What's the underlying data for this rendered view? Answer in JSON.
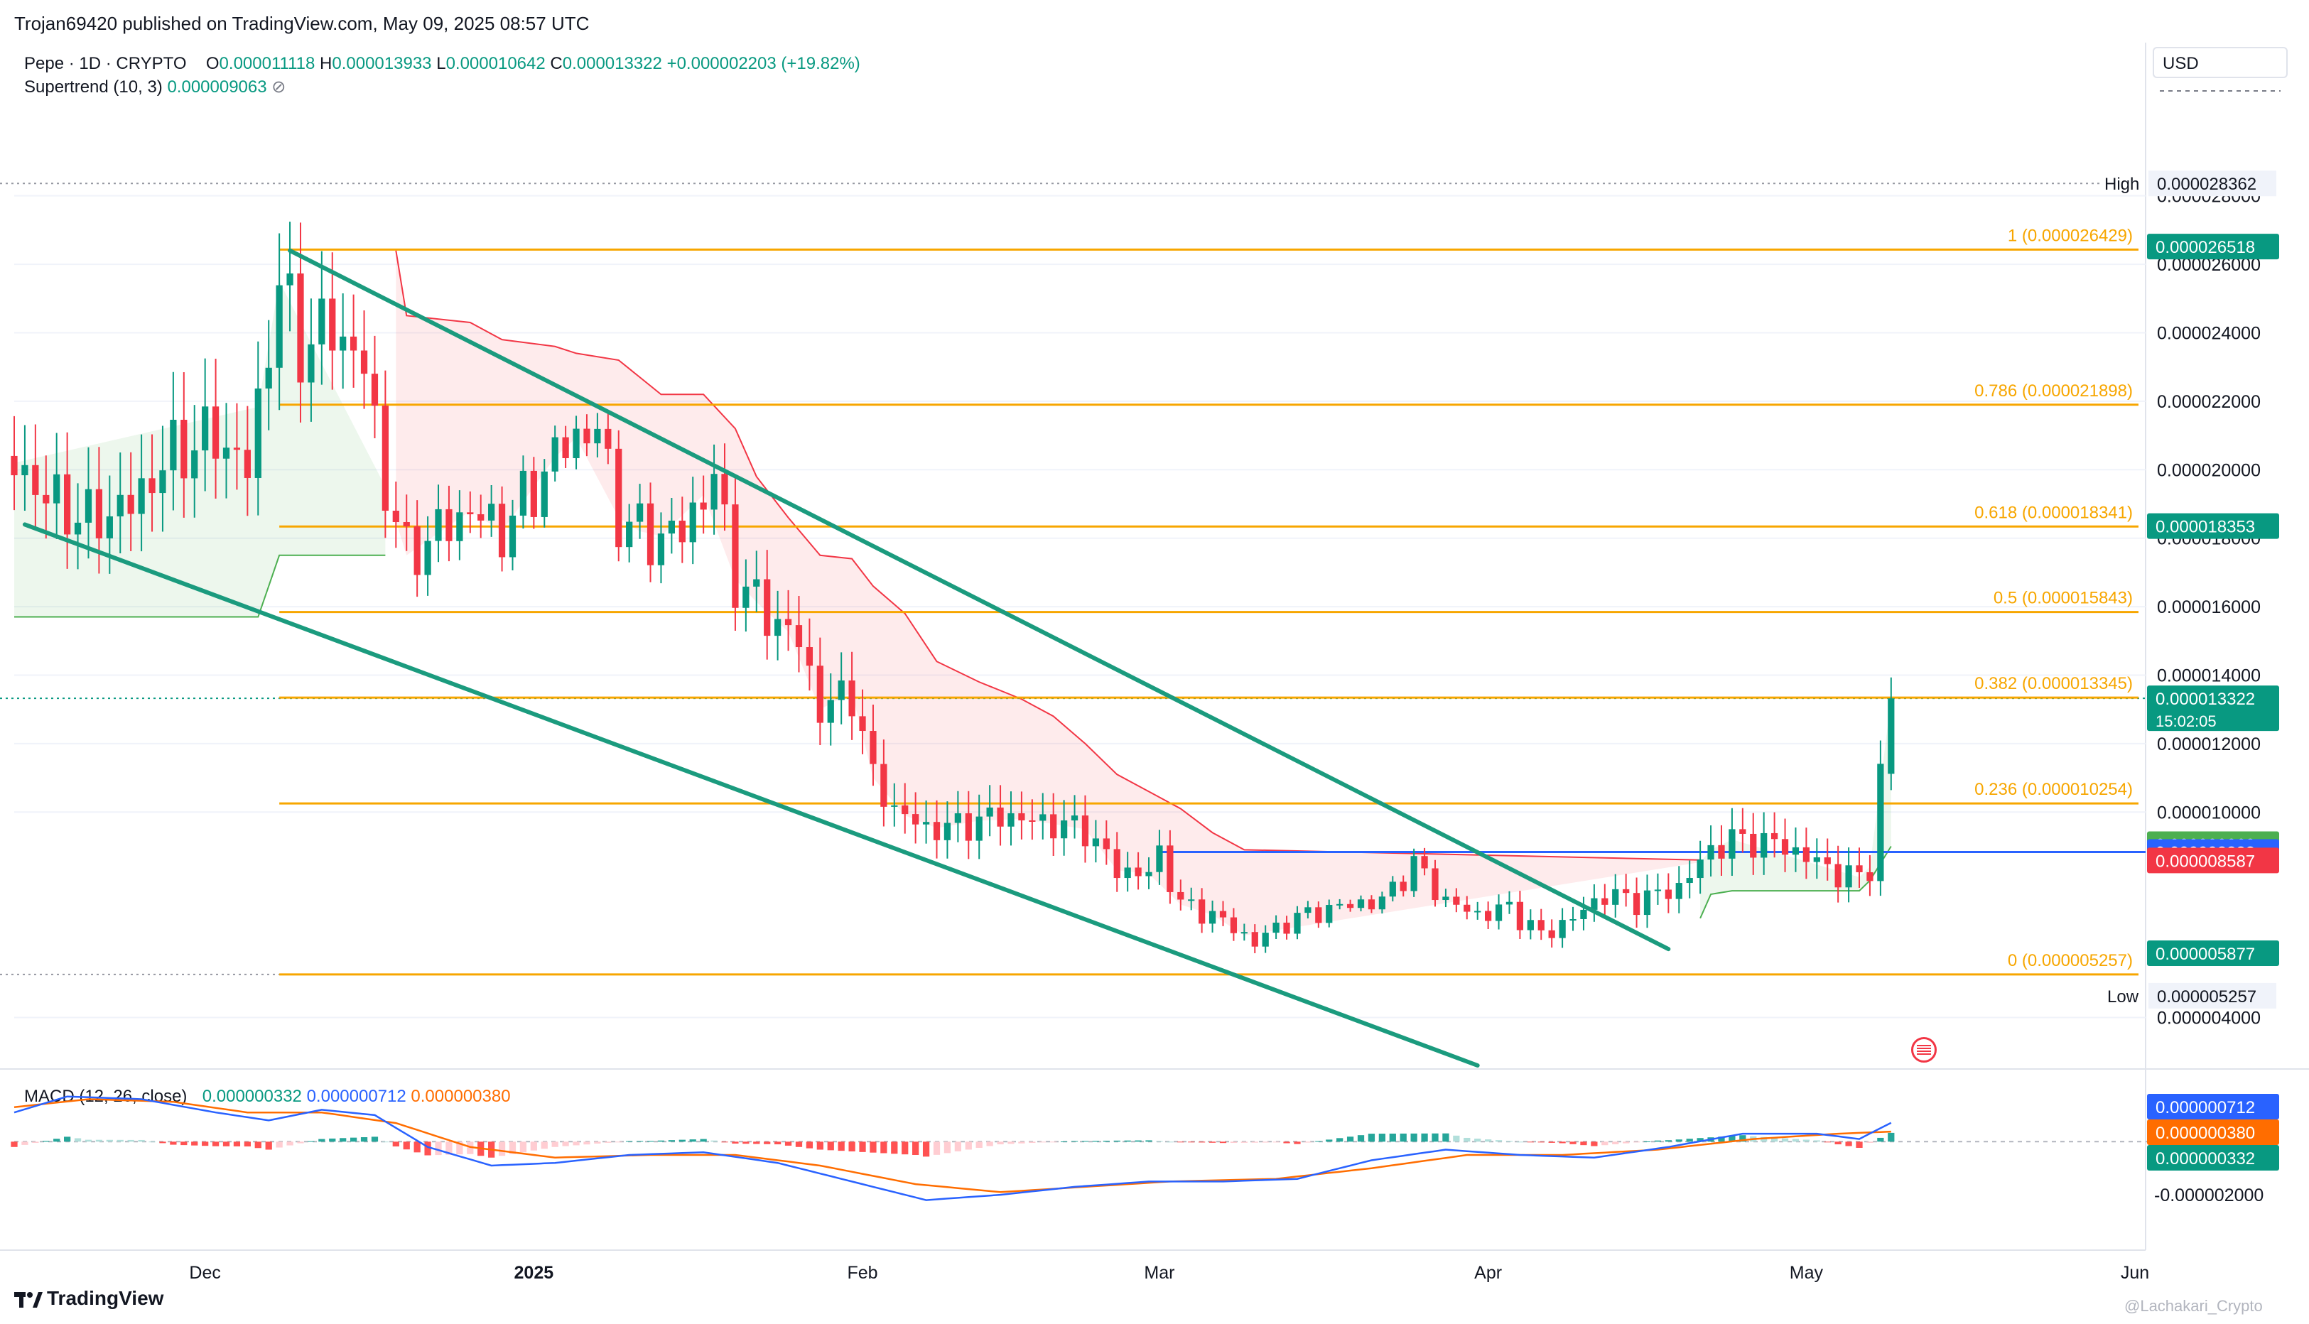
{
  "publisher": "Trojan69420 published on TradingView.com, May 09, 2025 08:57 UTC",
  "legend": {
    "symbol": "Pepe · 1D · CRYPTO",
    "o_label": "O",
    "o": "0.000011118",
    "h_label": "H",
    "h": "0.000013933",
    "l_label": "L",
    "l": "0.000010642",
    "c_label": "C",
    "c": "0.000013322",
    "change": "+0.000002203 (+19.82%)",
    "supertrend_label": "Supertrend (10, 3)",
    "supertrend_value": "0.000009063",
    "supertrend_icon": "hide-eye-icon"
  },
  "macd_legend": {
    "label": "MACD (12, 26, close)",
    "hist": "0.000000332",
    "macd": "0.000000712",
    "signal": "0.000000380"
  },
  "currency_button": "USD",
  "branding": "TradingView",
  "watermark": "@Lachakari_Crypto",
  "colors": {
    "up": "#089981",
    "down": "#f23645",
    "fib": "#f7a600",
    "blue": "#2962ff",
    "macd": "#2962ff",
    "signal": "#ff6d00",
    "trend": "#1b9b7e",
    "st_up": "#4caf50",
    "st_down": "#f23645"
  },
  "chart_data": {
    "type": "candlestick",
    "timeframe": "1D",
    "ylim": [
      2.6e-06,
      3.04e-05
    ],
    "y_ticks": [
      "0.000028000",
      "0.000026000",
      "0.000024000",
      "0.000022000",
      "0.000020000",
      "0.000018000",
      "0.000016000",
      "0.000014000",
      "0.000012000",
      "0.000010000",
      "0.000004000"
    ],
    "x_ticks": [
      "Dec",
      "2025",
      "Feb",
      "Mar",
      "Apr",
      "May",
      "Jun"
    ],
    "x_tick_dates": [
      "2024-12-01",
      "2025-01-01",
      "2025-02-01",
      "2025-03-01",
      "2025-04-01",
      "2025-05-01",
      "2025-06-01"
    ],
    "x_range": [
      "2024-11-13",
      "2025-06-02"
    ],
    "candle_close_anchors": [
      {
        "date": "2024-11-13",
        "close": 2.02e-05
      },
      {
        "date": "2024-11-16",
        "close": 1.92e-05
      },
      {
        "date": "2024-11-20",
        "close": 1.85e-05
      },
      {
        "date": "2024-11-24",
        "close": 1.9e-05
      },
      {
        "date": "2024-11-28",
        "close": 2.05e-05
      },
      {
        "date": "2024-12-02",
        "close": 2.1e-05
      },
      {
        "date": "2024-12-05",
        "close": 2e-05
      },
      {
        "date": "2024-12-08",
        "close": 2.55e-05
      },
      {
        "date": "2024-12-10",
        "close": 2.36e-05
      },
      {
        "date": "2024-12-13",
        "close": 2.42e-05
      },
      {
        "date": "2024-12-16",
        "close": 2.3e-05
      },
      {
        "date": "2024-12-18",
        "close": 1.95e-05
      },
      {
        "date": "2024-12-20",
        "close": 1.75e-05
      },
      {
        "date": "2024-12-23",
        "close": 1.82e-05
      },
      {
        "date": "2024-12-26",
        "close": 1.88e-05
      },
      {
        "date": "2024-12-29",
        "close": 1.82e-05
      },
      {
        "date": "2025-01-01",
        "close": 1.95e-05
      },
      {
        "date": "2025-01-04",
        "close": 2.08e-05
      },
      {
        "date": "2025-01-07",
        "close": 2.12e-05
      },
      {
        "date": "2025-01-09",
        "close": 1.86e-05
      },
      {
        "date": "2025-01-12",
        "close": 1.8e-05
      },
      {
        "date": "2025-01-15",
        "close": 1.82e-05
      },
      {
        "date": "2025-01-18",
        "close": 1.98e-05
      },
      {
        "date": "2025-01-20",
        "close": 1.68e-05
      },
      {
        "date": "2025-01-23",
        "close": 1.58e-05
      },
      {
        "date": "2025-01-26",
        "close": 1.5e-05
      },
      {
        "date": "2025-01-28",
        "close": 1.3e-05
      },
      {
        "date": "2025-01-31",
        "close": 1.35e-05
      },
      {
        "date": "2025-02-02",
        "close": 1.1e-05
      },
      {
        "date": "2025-02-04",
        "close": 1.01e-05
      },
      {
        "date": "2025-02-07",
        "close": 9.5e-06
      },
      {
        "date": "2025-02-10",
        "close": 9.6e-06
      },
      {
        "date": "2025-02-14",
        "close": 9.9e-06
      },
      {
        "date": "2025-02-18",
        "close": 9.7e-06
      },
      {
        "date": "2025-02-22",
        "close": 9.5e-06
      },
      {
        "date": "2025-02-25",
        "close": 8.3e-06
      },
      {
        "date": "2025-02-28",
        "close": 8.2e-06
      },
      {
        "date": "2025-03-01",
        "close": 8.8e-06
      },
      {
        "date": "2025-03-03",
        "close": 7.3e-06
      },
      {
        "date": "2025-03-06",
        "close": 7e-06
      },
      {
        "date": "2025-03-08",
        "close": 6.6e-06
      },
      {
        "date": "2025-03-10",
        "close": 6.2e-06
      },
      {
        "date": "2025-03-13",
        "close": 6.8e-06
      },
      {
        "date": "2025-03-16",
        "close": 7.1e-06
      },
      {
        "date": "2025-03-19",
        "close": 7.3e-06
      },
      {
        "date": "2025-03-22",
        "close": 7.4e-06
      },
      {
        "date": "2025-03-25",
        "close": 8.5e-06
      },
      {
        "date": "2025-03-28",
        "close": 7.4e-06
      },
      {
        "date": "2025-03-31",
        "close": 7e-06
      },
      {
        "date": "2025-04-03",
        "close": 7.2e-06
      },
      {
        "date": "2025-04-06",
        "close": 6.4e-06
      },
      {
        "date": "2025-04-09",
        "close": 6.9e-06
      },
      {
        "date": "2025-04-12",
        "close": 7.6e-06
      },
      {
        "date": "2025-04-15",
        "close": 7.4e-06
      },
      {
        "date": "2025-04-19",
        "close": 7.8e-06
      },
      {
        "date": "2025-04-22",
        "close": 8.9e-06
      },
      {
        "date": "2025-04-24",
        "close": 9.2e-06
      },
      {
        "date": "2025-04-28",
        "close": 9.1e-06
      },
      {
        "date": "2025-05-01",
        "close": 8.7e-06
      },
      {
        "date": "2025-05-04",
        "close": 8.2e-06
      },
      {
        "date": "2025-05-06",
        "close": 8.1e-06
      },
      {
        "date": "2025-05-07",
        "close": 8.4e-06
      },
      {
        "date": "2025-05-08",
        "close": 1.11e-05
      },
      {
        "date": "2025-05-09",
        "close": 1.33e-05
      }
    ],
    "last_candle": {
      "date": "2025-05-09",
      "open": 1.1118e-05,
      "high": 1.3933e-05,
      "low": 1.0642e-05,
      "close": 1.3322e-05
    },
    "high_marker": {
      "label": "High",
      "value": "0.000028362",
      "date": "2024-12-08"
    },
    "low_marker": {
      "label": "Low",
      "value": "0.000005257",
      "date": "2025-03-11"
    },
    "fib_levels": [
      {
        "label": "1 (0.000026429)",
        "value": 2.6429e-05
      },
      {
        "label": "0.786 (0.000021898)",
        "value": 2.1898e-05
      },
      {
        "label": "0.618 (0.000018341)",
        "value": 1.8341e-05
      },
      {
        "label": "0.5 (0.000015843)",
        "value": 1.5843e-05
      },
      {
        "label": "0.382 (0.000013345)",
        "value": 1.3345e-05
      },
      {
        "label": "0.236 (0.000010254)",
        "value": 1.0254e-05
      },
      {
        "label": "0 (0.000005257)",
        "value": 5.257e-06
      }
    ],
    "horizontal_line": {
      "value": 8.833e-06,
      "from": "2025-03-01",
      "to": "2025-06-02"
    },
    "trendlines": [
      {
        "from": {
          "date": "2024-12-09",
          "value": 2.64e-05
        },
        "to": {
          "date": "2025-04-18",
          "value": 6e-06
        }
      },
      {
        "from": {
          "date": "2024-11-14",
          "value": 1.84e-05
        },
        "to": {
          "date": "2025-03-31",
          "value": 2.6e-06
        }
      }
    ],
    "supertrend_up_1": [
      {
        "date": "2024-11-13",
        "value": 1.57e-05
      },
      {
        "date": "2024-12-06",
        "value": 1.57e-05
      },
      {
        "date": "2024-12-08",
        "value": 1.75e-05
      },
      {
        "date": "2024-12-18",
        "value": 1.75e-05
      }
    ],
    "supertrend_down": [
      {
        "date": "2024-12-19",
        "value": 2.64e-05
      },
      {
        "date": "2024-12-20",
        "value": 2.45e-05
      },
      {
        "date": "2024-12-26",
        "value": 2.43e-05
      },
      {
        "date": "2024-12-29",
        "value": 2.38e-05
      },
      {
        "date": "2025-01-03",
        "value": 2.36e-05
      },
      {
        "date": "2025-01-05",
        "value": 2.34e-05
      },
      {
        "date": "2025-01-09",
        "value": 2.32e-05
      },
      {
        "date": "2025-01-11",
        "value": 2.27e-05
      },
      {
        "date": "2025-01-13",
        "value": 2.22e-05
      },
      {
        "date": "2025-01-17",
        "value": 2.22e-05
      },
      {
        "date": "2025-01-20",
        "value": 2.12e-05
      },
      {
        "date": "2025-01-22",
        "value": 1.98e-05
      },
      {
        "date": "2025-01-25",
        "value": 1.86e-05
      },
      {
        "date": "2025-01-28",
        "value": 1.75e-05
      },
      {
        "date": "2025-01-31",
        "value": 1.74e-05
      },
      {
        "date": "2025-02-02",
        "value": 1.66e-05
      },
      {
        "date": "2025-02-05",
        "value": 1.58e-05
      },
      {
        "date": "2025-02-08",
        "value": 1.44e-05
      },
      {
        "date": "2025-02-12",
        "value": 1.38e-05
      },
      {
        "date": "2025-02-16",
        "value": 1.33e-05
      },
      {
        "date": "2025-02-19",
        "value": 1.28e-05
      },
      {
        "date": "2025-02-22",
        "value": 1.2e-05
      },
      {
        "date": "2025-02-25",
        "value": 1.11e-05
      },
      {
        "date": "2025-02-28",
        "value": 1.06e-05
      },
      {
        "date": "2025-03-03",
        "value": 1.01e-05
      },
      {
        "date": "2025-03-06",
        "value": 9.4e-06
      },
      {
        "date": "2025-03-09",
        "value": 8.9e-06
      },
      {
        "date": "2025-04-21",
        "value": 8.6e-06
      }
    ],
    "supertrend_up_2": [
      {
        "date": "2025-04-21",
        "value": 6.9e-06
      },
      {
        "date": "2025-04-22",
        "value": 7.6e-06
      },
      {
        "date": "2025-04-24",
        "value": 7.7e-06
      },
      {
        "date": "2025-05-06",
        "value": 7.7e-06
      },
      {
        "date": "2025-05-07",
        "value": 8e-06
      },
      {
        "date": "2025-05-09",
        "value": 9e-06
      }
    ],
    "price_badges": [
      {
        "value": "0.000026518",
        "bg": "#089981",
        "fg": "#ffffff",
        "at": 2.6518e-05
      },
      {
        "value": "0.000018353",
        "bg": "#089981",
        "fg": "#ffffff",
        "at": 1.8353e-05
      },
      {
        "value": "0.000013322",
        "sub": "15:02:05",
        "bg": "#089981",
        "fg": "#ffffff",
        "at": 1.3322e-05
      },
      {
        "value": "0.000009063",
        "bg": "#4caf50",
        "fg": "#ffffff",
        "at": 9.063e-06
      },
      {
        "value": "0.000008833",
        "bg": "#2962ff",
        "fg": "#ffffff",
        "at": 8.833e-06
      },
      {
        "value": "0.000008587",
        "bg": "#f23645",
        "fg": "#ffffff",
        "at": 8.587e-06
      },
      {
        "value": "0.000005877",
        "bg": "#089981",
        "fg": "#ffffff",
        "at": 5.877e-06
      }
    ],
    "macd": {
      "ylim": [
        -2.8e-06,
        1.8e-06
      ],
      "y_ticks": [
        "-0.000002000"
      ],
      "badges": [
        {
          "value": "0.000000712",
          "bg": "#2962ff",
          "at": 7.12e-07
        },
        {
          "value": "0.000000380",
          "bg": "#ff6d00",
          "at": 3.8e-07
        },
        {
          "value": "0.000000332",
          "bg": "#089981",
          "at": 3.32e-07
        }
      ],
      "macd_anchors": [
        {
          "date": "2024-11-13",
          "value": 1.1e-06
        },
        {
          "date": "2024-11-18",
          "value": 1.7e-06
        },
        {
          "date": "2024-11-25",
          "value": 1.6e-06
        },
        {
          "date": "2024-12-02",
          "value": 1.1e-06
        },
        {
          "date": "2024-12-07",
          "value": 8e-07
        },
        {
          "date": "2024-12-12",
          "value": 1.2e-06
        },
        {
          "date": "2024-12-17",
          "value": 1e-06
        },
        {
          "date": "2024-12-22",
          "value": -2e-07
        },
        {
          "date": "2024-12-28",
          "value": -9e-07
        },
        {
          "date": "2025-01-03",
          "value": -8e-07
        },
        {
          "date": "2025-01-10",
          "value": -5e-07
        },
        {
          "date": "2025-01-17",
          "value": -4e-07
        },
        {
          "date": "2025-01-24",
          "value": -8e-07
        },
        {
          "date": "2025-01-31",
          "value": -1.5e-06
        },
        {
          "date": "2025-02-07",
          "value": -2.2e-06
        },
        {
          "date": "2025-02-14",
          "value": -2e-06
        },
        {
          "date": "2025-02-21",
          "value": -1.7e-06
        },
        {
          "date": "2025-02-28",
          "value": -1.5e-06
        },
        {
          "date": "2025-03-07",
          "value": -1.5e-06
        },
        {
          "date": "2025-03-14",
          "value": -1.4e-06
        },
        {
          "date": "2025-03-21",
          "value": -7e-07
        },
        {
          "date": "2025-03-28",
          "value": -3e-07
        },
        {
          "date": "2025-04-04",
          "value": -5e-07
        },
        {
          "date": "2025-04-11",
          "value": -6e-07
        },
        {
          "date": "2025-04-18",
          "value": -2e-07
        },
        {
          "date": "2025-04-25",
          "value": 3e-07
        },
        {
          "date": "2025-05-02",
          "value": 3e-07
        },
        {
          "date": "2025-05-06",
          "value": 1e-07
        },
        {
          "date": "2025-05-09",
          "value": 7.12e-07
        }
      ],
      "signal_anchors": [
        {
          "date": "2024-11-13",
          "value": 1.3e-06
        },
        {
          "date": "2024-11-20",
          "value": 1.6e-06
        },
        {
          "date": "2024-11-28",
          "value": 1.5e-06
        },
        {
          "date": "2024-12-05",
          "value": 1.1e-06
        },
        {
          "date": "2024-12-12",
          "value": 1.1e-06
        },
        {
          "date": "2024-12-19",
          "value": 7e-07
        },
        {
          "date": "2024-12-26",
          "value": -2e-07
        },
        {
          "date": "2025-01-03",
          "value": -6e-07
        },
        {
          "date": "2025-01-12",
          "value": -5e-07
        },
        {
          "date": "2025-01-20",
          "value": -5e-07
        },
        {
          "date": "2025-01-28",
          "value": -9e-07
        },
        {
          "date": "2025-02-06",
          "value": -1.6e-06
        },
        {
          "date": "2025-02-14",
          "value": -1.9e-06
        },
        {
          "date": "2025-02-22",
          "value": -1.7e-06
        },
        {
          "date": "2025-03-02",
          "value": -1.5e-06
        },
        {
          "date": "2025-03-12",
          "value": -1.4e-06
        },
        {
          "date": "2025-03-21",
          "value": -1e-06
        },
        {
          "date": "2025-03-30",
          "value": -5e-07
        },
        {
          "date": "2025-04-08",
          "value": -5e-07
        },
        {
          "date": "2025-04-17",
          "value": -3e-07
        },
        {
          "date": "2025-04-26",
          "value": 1e-07
        },
        {
          "date": "2025-05-04",
          "value": 3e-07
        },
        {
          "date": "2025-05-09",
          "value": 3.8e-07
        }
      ]
    }
  }
}
